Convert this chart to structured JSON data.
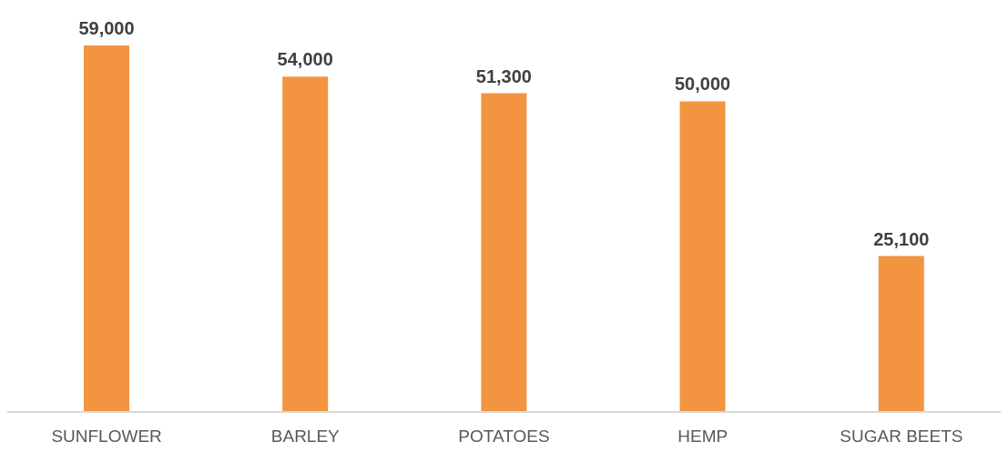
{
  "chart_data": {
    "type": "bar",
    "categories": [
      "SUNFLOWER",
      "BARLEY",
      "POTATOES",
      "HEMP",
      "SUGAR BEETS"
    ],
    "values": [
      59000,
      54000,
      51300,
      50000,
      25100
    ],
    "color": "#f39440",
    "value_labels": [
      "59,000",
      "54,000",
      "51,300",
      "50,000",
      "25,100"
    ],
    "grid": false
  }
}
